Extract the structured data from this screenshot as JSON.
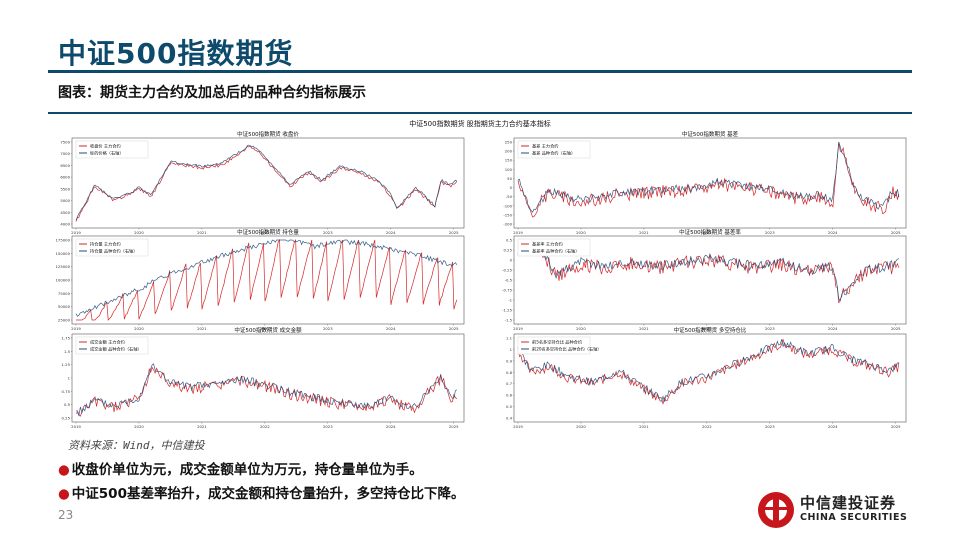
{
  "slide": {
    "title": "中证500指数期货",
    "subtitle": "图表：期货主力合约及加总后的品种合约指标展示",
    "source": "资料来源：Wind，中信建投",
    "bullets": [
      "收盘价单位为元，成交金额单位为万元，持仓量单位为手。",
      "中证500基差率抬升，成交金额和持仓量抬升，多空持仓比下降。"
    ],
    "page_number": "23",
    "logo_cn": "中信建投证券",
    "logo_en": "CHINA SECURITIES",
    "accent_color": "#0d4a6b",
    "bullet_color": "#c8161d"
  },
  "figure": {
    "suptitle": "中证500指数期货 股指期货主力合约基本指标",
    "x_tick_labels": [
      "2019",
      "2020",
      "2021",
      "2022",
      "2023",
      "2024",
      "2025"
    ]
  },
  "chart_data": [
    {
      "type": "line",
      "title": "中证500指数期货 收盘价",
      "series": [
        {
          "name": "收盘价 主力合约",
          "color": "#d62728"
        },
        {
          "name": "标的价格（右轴）",
          "color": "#1f4e79"
        }
      ],
      "x_start": 2019,
      "x_end": 2025.1,
      "x": [
        2019.0,
        2019.3,
        2019.6,
        2019.9,
        2020.0,
        2020.2,
        2020.5,
        2020.7,
        2021.0,
        2021.3,
        2021.6,
        2021.75,
        2021.9,
        2022.2,
        2022.4,
        2022.7,
        2022.9,
        2023.2,
        2023.5,
        2023.8,
        2024.0,
        2024.1,
        2024.4,
        2024.7,
        2024.8,
        2024.95,
        2025.05
      ],
      "values": [
        4100,
        5600,
        5000,
        5300,
        5500,
        5200,
        6600,
        6500,
        6400,
        6500,
        7000,
        7300,
        7100,
        6200,
        5600,
        6200,
        5800,
        6400,
        6200,
        5800,
        5200,
        4600,
        5500,
        4700,
        5800,
        5600,
        5800
      ],
      "y_ticks": [
        4000,
        4500,
        5000,
        5500,
        6000,
        6500,
        7000,
        7500
      ]
    },
    {
      "type": "line",
      "title": "中证500指数期货 基差",
      "series": [
        {
          "name": "基差 主力合约",
          "color": "#d62728"
        },
        {
          "name": "基差 品种合约（右轴）",
          "color": "#1f4e79"
        }
      ],
      "x_start": 2019,
      "x_end": 2025.1,
      "x": [
        2019.0,
        2019.2,
        2019.5,
        2019.8,
        2020.0,
        2020.3,
        2020.6,
        2021.0,
        2021.4,
        2021.8,
        2022.2,
        2022.6,
        2023.0,
        2023.4,
        2023.8,
        2024.0,
        2024.1,
        2024.4,
        2024.8,
        2024.95,
        2025.05
      ],
      "values": [
        50,
        -150,
        -20,
        -60,
        -80,
        -60,
        -40,
        -30,
        -20,
        -10,
        20,
        0,
        -20,
        -60,
        -50,
        -80,
        250,
        -60,
        -120,
        -30,
        -40
      ],
      "y_ticks": [
        -200,
        -150,
        -100,
        -50,
        0,
        50,
        100,
        150,
        200,
        250
      ]
    },
    {
      "type": "line",
      "title": "中证500指数期货 持仓量",
      "series": [
        {
          "name": "持仓量 主力合约",
          "color": "#d62728"
        },
        {
          "name": "持仓量 品种合约（右轴）",
          "color": "#1f4e79"
        }
      ],
      "x_start": 2019,
      "x_end": 2025.1,
      "x": [
        2019.0,
        2019.5,
        2020.0,
        2020.5,
        2021.0,
        2021.5,
        2022.0,
        2022.3,
        2022.8,
        2023.2,
        2023.6,
        2024.0,
        2024.4,
        2024.8,
        2025.05
      ],
      "values": [
        30000,
        55000,
        80000,
        110000,
        130000,
        150000,
        165000,
        175000,
        160000,
        170000,
        165000,
        155000,
        145000,
        130000,
        125000
      ],
      "y_ticks": [
        25000,
        50000,
        75000,
        100000,
        125000,
        150000,
        175000
      ]
    },
    {
      "type": "line",
      "title": "中证500指数期货 基差率",
      "series": [
        {
          "name": "基差率 主力合约",
          "color": "#d62728"
        },
        {
          "name": "基差率 品种合约（右轴）",
          "color": "#1f4e79"
        }
      ],
      "x_start": 2019,
      "x_end": 2025.1,
      "x": [
        2019.0,
        2019.3,
        2019.6,
        2020.0,
        2020.4,
        2020.8,
        2021.2,
        2021.6,
        2022.0,
        2022.4,
        2022.8,
        2023.2,
        2023.6,
        2024.0,
        2024.1,
        2024.5,
        2024.9,
        2025.05
      ],
      "values": [
        0.3,
        0.5,
        -0.4,
        -0.1,
        -0.2,
        -0.1,
        -0.2,
        -0.1,
        0.0,
        -0.1,
        -0.2,
        -0.1,
        -0.3,
        -0.2,
        -1.0,
        -0.3,
        -0.2,
        -0.1
      ],
      "y_ticks": [
        -1.5,
        -1.25,
        -1.0,
        -0.75,
        -0.5,
        -0.25,
        0.0,
        0.25,
        0.5
      ]
    },
    {
      "type": "line",
      "title": "中证500指数期货 成交金额",
      "series": [
        {
          "name": "成交金额 主力合约",
          "color": "#d62728"
        },
        {
          "name": "成交金额 品种合约（右轴）",
          "color": "#1f4e79"
        }
      ],
      "x_start": 2019,
      "x_end": 2025.1,
      "x": [
        2019.0,
        2019.3,
        2019.6,
        2020.0,
        2020.2,
        2020.5,
        2020.8,
        2021.2,
        2021.6,
        2022.0,
        2022.4,
        2022.8,
        2023.2,
        2023.6,
        2024.0,
        2024.1,
        2024.4,
        2024.8,
        2024.95,
        2025.05
      ],
      "values": [
        0.3,
        0.55,
        0.45,
        0.6,
        1.2,
        0.9,
        0.8,
        0.85,
        0.95,
        0.85,
        0.7,
        0.6,
        0.5,
        0.45,
        0.6,
        0.5,
        0.45,
        1.0,
        0.6,
        0.7
      ],
      "y_ticks": [
        0.25,
        0.5,
        0.75,
        1.0,
        1.25,
        1.5,
        1.75
      ]
    },
    {
      "type": "line",
      "title": "中证500指数期货 多空持仓比",
      "series": [
        {
          "name": "前5名多空持仓比 品种合约",
          "color": "#d62728"
        },
        {
          "name": "前20名多空持仓比 品种合约（右轴）",
          "color": "#1f4e79"
        }
      ],
      "x_start": 2019,
      "x_end": 2025.1,
      "x": [
        2019.0,
        2019.2,
        2019.5,
        2019.8,
        2020.2,
        2020.6,
        2021.0,
        2021.3,
        2021.6,
        2022.0,
        2022.4,
        2022.8,
        2023.2,
        2023.6,
        2024.0,
        2024.3,
        2024.6,
        2024.9,
        2025.05
      ],
      "values": [
        1.0,
        0.8,
        0.85,
        0.75,
        0.7,
        0.8,
        0.65,
        0.55,
        0.7,
        0.75,
        0.85,
        0.95,
        1.05,
        0.95,
        1.0,
        0.9,
        0.85,
        0.8,
        0.85
      ],
      "y_ticks": [
        0.4,
        0.5,
        0.6,
        0.7,
        0.8,
        0.9,
        1.0,
        1.1
      ]
    }
  ]
}
